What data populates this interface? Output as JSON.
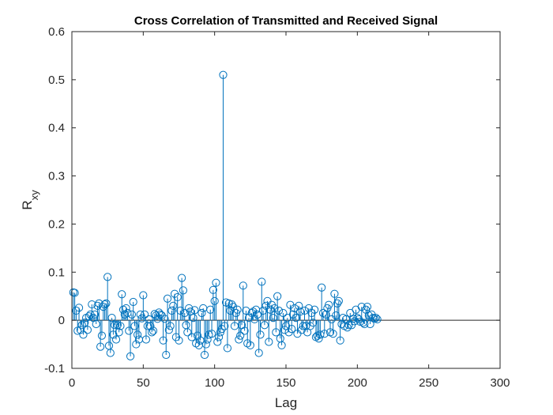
{
  "chart_data": {
    "type": "stem",
    "title": "Cross Correlation of Transmitted and Received Signal",
    "xlabel": "Lag",
    "ylabel_main": "R",
    "ylabel_sub": "xy",
    "xlim": [
      0,
      300
    ],
    "ylim": [
      -0.1,
      0.6
    ],
    "xticks": [
      0,
      50,
      100,
      150,
      200,
      250,
      300
    ],
    "yticks": [
      -0.1,
      0,
      0.1,
      0.2,
      0.3,
      0.4,
      0.5,
      0.6
    ],
    "ytick_labels": [
      "-0.1",
      "0",
      "0.1",
      "0.2",
      "0.3",
      "0.4",
      "0.5",
      "0.6"
    ],
    "grid": false,
    "color": "#0072BD",
    "x_start": 1,
    "values": [
      0.058,
      0.057,
      0.02,
      -0.022,
      0.026,
      -0.02,
      -0.01,
      -0.03,
      -0.005,
      0.005,
      -0.02,
      0.008,
      0.012,
      0.033,
      0.005,
      0.012,
      -0.008,
      0.03,
      0.035,
      -0.055,
      -0.032,
      0.028,
      0.033,
      0.035,
      0.09,
      -0.053,
      -0.068,
      0.005,
      -0.03,
      -0.01,
      -0.04,
      -0.01,
      -0.025,
      -0.012,
      0.054,
      0.022,
      0.012,
      0.025,
      0.015,
      -0.022,
      -0.075,
      0.012,
      0.038,
      -0.012,
      -0.05,
      -0.03,
      -0.04,
      0.012,
      0.004,
      0.052,
      0.012,
      -0.04,
      -0.012,
      0.002,
      -0.012,
      -0.025,
      -0.022,
      0.013,
      0.01,
      0.003,
      0.016,
      0.012,
      0.01,
      -0.042,
      0.003,
      -0.072,
      0.045,
      -0.02,
      -0.012,
      0.02,
      0.03,
      0.055,
      -0.035,
      0.048,
      -0.042,
      0.02,
      0.088,
      0.062,
      0.015,
      -0.01,
      -0.025,
      0.025,
      0.018,
      -0.035,
      0.005,
      0.021,
      -0.048,
      -0.032,
      -0.052,
      -0.042,
      0.015,
      0.025,
      -0.072,
      -0.05,
      -0.04,
      -0.03,
      0.022,
      -0.028,
      0.063,
      0.04,
      0.078,
      -0.045,
      -0.035,
      -0.025,
      -0.018,
      0.51,
      -0.012,
      0.037,
      -0.058,
      0.035,
      0.02,
      0.033,
      0.028,
      -0.012,
      0.015,
      0.022,
      -0.04,
      -0.032,
      -0.01,
      0.072,
      -0.022,
      0.02,
      -0.048,
      0.005,
      -0.052,
      0.015,
      0.018,
      0.002,
      0.022,
      0.012,
      -0.068,
      -0.03,
      0.08,
      0.02,
      -0.01,
      0.03,
      0.04,
      -0.045,
      0.022,
      0.032,
      0.005,
      0.025,
      -0.025,
      0.05,
      0.02,
      -0.038,
      -0.052,
      0.015,
      -0.02,
      -0.012,
      0.005,
      -0.025,
      0.032,
      -0.018,
      0.012,
      0.025,
      0.005,
      -0.028,
      0.03,
      0.018,
      -0.02,
      -0.012,
      0.02,
      -0.012,
      -0.025,
      0.025,
      -0.012,
      0.015,
      -0.005,
      0.022,
      -0.035,
      -0.032,
      -0.038,
      -0.03,
      0.068,
      0.015,
      -0.028,
      0.012,
      0.025,
      0.032,
      -0.025,
      0.002,
      -0.028,
      0.055,
      0.01,
      0.035,
      0.04,
      -0.042,
      -0.008,
      0.005,
      -0.012,
      0.002,
      -0.015,
      -0.01,
      0.015,
      -0.01,
      0.003,
      -0.002,
      0.022,
      0.005,
      0.002,
      -0.003,
      0.028,
      -0.005,
      -0.008,
      0.022,
      0.028,
      0.01,
      -0.008,
      0.012,
      0.005,
      0.003,
      0.005,
      0.002
    ]
  }
}
